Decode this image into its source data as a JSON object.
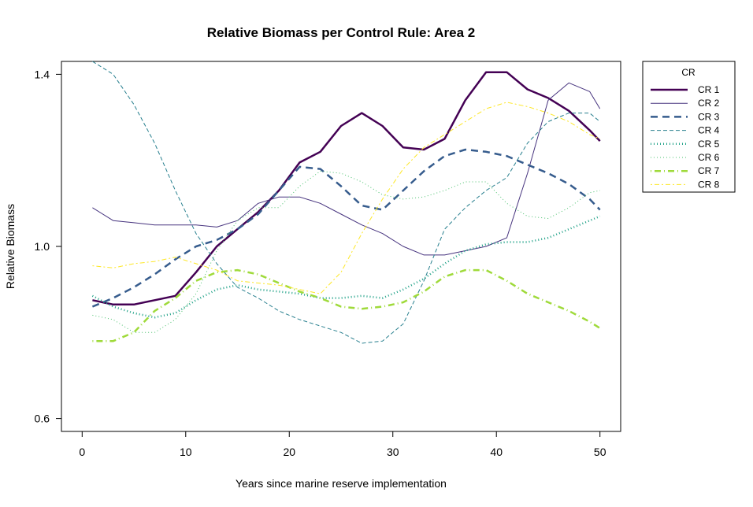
{
  "chart_data": {
    "type": "line",
    "title": "Relative Biomass per Control Rule: Area 2",
    "xlabel": "Years since marine reserve implementation",
    "ylabel": "Relative Biomass",
    "xlim": [
      -2,
      52
    ],
    "ylim": [
      0.57,
      1.43
    ],
    "xticks": [
      0,
      10,
      20,
      30,
      40,
      50
    ],
    "yticks": [
      0.6,
      1.0,
      1.4
    ],
    "xtick_labels": [
      "0",
      "10",
      "20",
      "30",
      "40",
      "50"
    ],
    "ytick_labels": [
      "0.6",
      "1.0",
      "1.4"
    ],
    "grid": false,
    "legend": {
      "title": "CR",
      "position": "outside-right-top"
    },
    "x": [
      1,
      3,
      5,
      7,
      9,
      11,
      13,
      15,
      17,
      19,
      21,
      23,
      25,
      27,
      29,
      31,
      33,
      35,
      37,
      39,
      41,
      43,
      45,
      47,
      49,
      50
    ],
    "series": [
      {
        "name": "CR 1",
        "color": "#440154",
        "dash": "solid",
        "width": 2.5,
        "values": [
          0.875,
          0.865,
          0.865,
          0.875,
          0.885,
          0.94,
          1.0,
          1.04,
          1.08,
          1.13,
          1.195,
          1.22,
          1.28,
          1.31,
          1.28,
          1.23,
          1.225,
          1.25,
          1.34,
          1.405,
          1.405,
          1.365,
          1.345,
          1.315,
          1.27,
          1.245
        ]
      },
      {
        "name": "CR 2",
        "color": "#46337e",
        "dash": "solid",
        "width": 1,
        "values": [
          1.09,
          1.06,
          1.055,
          1.05,
          1.05,
          1.05,
          1.045,
          1.06,
          1.1,
          1.115,
          1.115,
          1.1,
          1.075,
          1.05,
          1.03,
          1.0,
          0.98,
          0.98,
          0.99,
          1.0,
          1.02,
          1.17,
          1.34,
          1.38,
          1.36,
          1.32
        ]
      },
      {
        "name": "CR 3",
        "color": "#365c8d",
        "dash": "longdash",
        "width": 2.5,
        "values": [
          0.86,
          0.88,
          0.905,
          0.935,
          0.97,
          1.0,
          1.015,
          1.04,
          1.075,
          1.13,
          1.185,
          1.18,
          1.14,
          1.095,
          1.085,
          1.13,
          1.175,
          1.21,
          1.225,
          1.22,
          1.21,
          1.19,
          1.17,
          1.145,
          1.11,
          1.085
        ]
      },
      {
        "name": "CR 4",
        "color": "#277f8e",
        "dash": "dashed",
        "width": 1,
        "values": [
          1.43,
          1.4,
          1.33,
          1.24,
          1.13,
          1.03,
          0.96,
          0.905,
          0.88,
          0.85,
          0.83,
          0.815,
          0.8,
          0.775,
          0.78,
          0.82,
          0.92,
          1.04,
          1.09,
          1.13,
          1.16,
          1.24,
          1.29,
          1.31,
          1.31,
          1.29
        ]
      },
      {
        "name": "CR 5",
        "color": "#1fa187",
        "dash": "dotted",
        "width": 2.5,
        "values": [
          0.885,
          0.86,
          0.845,
          0.835,
          0.845,
          0.875,
          0.9,
          0.91,
          0.9,
          0.895,
          0.89,
          0.88,
          0.88,
          0.885,
          0.88,
          0.9,
          0.925,
          0.96,
          0.99,
          1.005,
          1.01,
          1.01,
          1.02,
          1.04,
          1.06,
          1.07
        ]
      },
      {
        "name": "CR 6",
        "color": "#4ac16d",
        "dash": "dotted",
        "width": 1,
        "values": [
          0.84,
          0.83,
          0.8,
          0.8,
          0.83,
          0.89,
          0.99,
          1.06,
          1.09,
          1.09,
          1.14,
          1.175,
          1.17,
          1.15,
          1.12,
          1.11,
          1.115,
          1.13,
          1.15,
          1.15,
          1.1,
          1.07,
          1.065,
          1.09,
          1.125,
          1.13
        ]
      },
      {
        "name": "CR 7",
        "color": "#9fda3a",
        "dash": "dotdash",
        "width": 2.5,
        "values": [
          0.78,
          0.78,
          0.8,
          0.85,
          0.88,
          0.92,
          0.94,
          0.945,
          0.935,
          0.915,
          0.895,
          0.88,
          0.86,
          0.855,
          0.86,
          0.87,
          0.895,
          0.93,
          0.945,
          0.945,
          0.92,
          0.89,
          0.87,
          0.85,
          0.825,
          0.81
        ]
      },
      {
        "name": "CR 8",
        "color": "#fde725",
        "dash": "dashdot",
        "width": 1,
        "values": [
          0.955,
          0.95,
          0.96,
          0.965,
          0.975,
          0.96,
          0.945,
          0.92,
          0.915,
          0.91,
          0.9,
          0.89,
          0.94,
          1.03,
          1.11,
          1.18,
          1.23,
          1.26,
          1.29,
          1.32,
          1.335,
          1.325,
          1.31,
          1.29,
          1.26,
          1.25
        ]
      }
    ]
  }
}
